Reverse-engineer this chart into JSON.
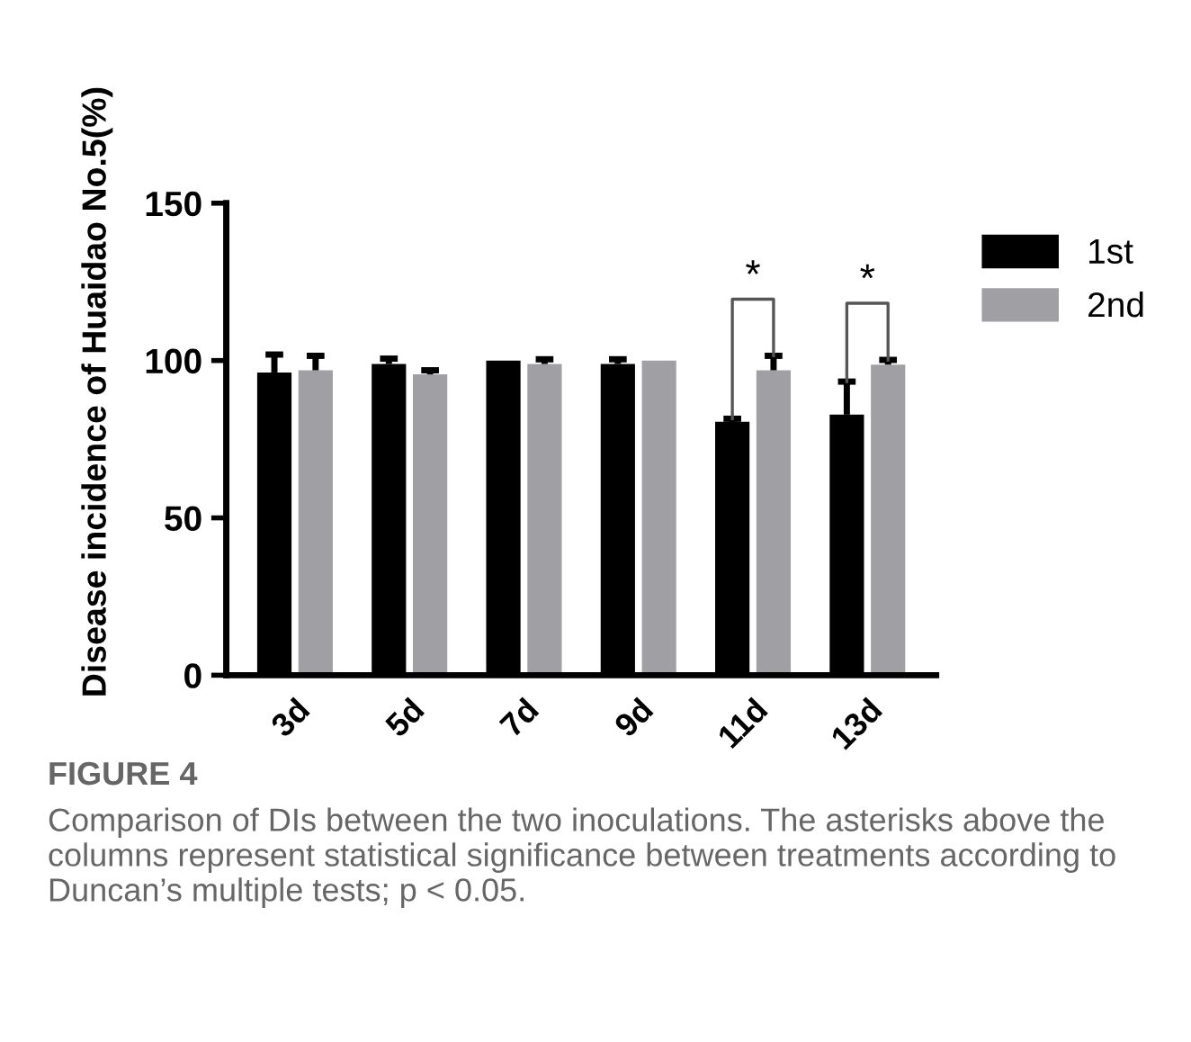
{
  "chart_data": {
    "type": "bar",
    "ylabel": "Disease incidence of Huaidao No.5(%)",
    "categories": [
      "3d",
      "5d",
      "7d",
      "9d",
      "11d",
      "13d"
    ],
    "series": [
      {
        "name": "1st",
        "color": "#000000",
        "values": [
          96.2,
          98.9,
          100,
          98.9,
          80.5,
          82.8
        ],
        "errors": [
          [
            96.2,
            101.9
          ],
          [
            98.9,
            100.6
          ],
          null,
          [
            98.9,
            100.4
          ],
          [
            80.5,
            81.5
          ],
          [
            82.8,
            93.3
          ]
        ]
      },
      {
        "name": "2nd",
        "color": "#a0a0a4",
        "values": [
          96.9,
          95.6,
          98.9,
          100,
          96.9,
          98.7
        ],
        "errors": [
          [
            96.9,
            101.5
          ],
          [
            95.6,
            96.9
          ],
          [
            98.9,
            100.4
          ],
          null,
          [
            96.9,
            101.5
          ],
          [
            98.7,
            100.2
          ]
        ]
      }
    ],
    "ylim": [
      0,
      150
    ],
    "yticks": [
      0,
      50,
      100,
      150
    ],
    "grid": false,
    "legend": "top right",
    "annotations": [
      "*",
      "*",
      "FIGURE 4",
      "Comparison of DIs between the two inoculations. The asterisks above the columns represent statistical significance between treatments according to Duncan’s multiple tests; p < 0.05."
    ]
  }
}
